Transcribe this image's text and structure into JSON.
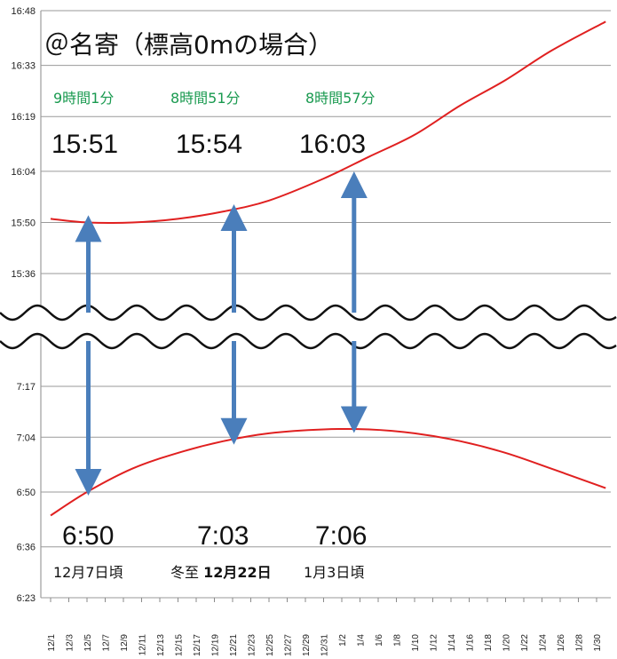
{
  "chart_data": {
    "type": "line",
    "title": "＠名寄（標高0mの場合）",
    "upper_panel": {
      "y_ticks": [
        "15:36",
        "15:50",
        "16:04",
        "16:19",
        "16:33",
        "16:48"
      ],
      "series": [
        {
          "name": "",
          "color": "#e02020",
          "x": [
            "12/1",
            "12/5",
            "12/10",
            "12/15",
            "12/20",
            "12/25",
            "12/31",
            "1/5",
            "1/10",
            "1/15",
            "1/20",
            "1/25",
            "1/31"
          ],
          "y": [
            "15:51",
            "15:50",
            "15:50",
            "15:51",
            "15:53",
            "15:56",
            "16:02",
            "16:08",
            "16:14",
            "16:22",
            "16:29",
            "16:37",
            "16:45"
          ]
        }
      ]
    },
    "lower_panel": {
      "y_ticks": [
        "6:23",
        "6:36",
        "6:50",
        "7:04",
        "7:17"
      ],
      "series": [
        {
          "name": "",
          "color": "#e02020",
          "x": [
            "12/1",
            "12/5",
            "12/10",
            "12/15",
            "12/20",
            "12/25",
            "12/31",
            "1/5",
            "1/10",
            "1/15",
            "1/20",
            "1/25",
            "1/31"
          ],
          "y": [
            "6:44",
            "6:50",
            "6:56",
            "7:00",
            "7:03",
            "7:05",
            "7:06",
            "7:06",
            "7:05",
            "7:03",
            "7:00",
            "6:56",
            "6:51"
          ]
        }
      ]
    },
    "x_ticks": [
      "12/1",
      "12/3",
      "12/5",
      "12/7",
      "12/9",
      "12/11",
      "12/13",
      "12/15",
      "12/17",
      "12/19",
      "12/21",
      "12/23",
      "12/25",
      "12/27",
      "12/29",
      "12/31",
      "1/2",
      "1/4",
      "1/6",
      "1/8",
      "1/10",
      "1/12",
      "1/14",
      "1/16",
      "1/18",
      "1/20",
      "1/22",
      "1/24",
      "1/26",
      "1/28",
      "1/30"
    ],
    "annotations": [
      {
        "date_label": "12月7日頃",
        "date_index": 2,
        "daylength": "9時間1分",
        "sunset": "15:51",
        "sunrise": "6:50",
        "sunset_value": "15:51",
        "sunrise_value": "6:50"
      },
      {
        "date_label_prefix": "冬至 ",
        "date_label": "12月22日",
        "date_index": 10,
        "daylength": "8時間51分",
        "sunset": "15:54",
        "sunrise": "7:03",
        "sunset_value": "15:54",
        "sunrise_value": "7:03"
      },
      {
        "date_label": "1月3日頃",
        "date_index": 16.6,
        "daylength": "8時間57分",
        "sunset": "16:03",
        "sunrise": "7:06",
        "sunset_value": "16:03",
        "sunrise_value": "7:06"
      }
    ],
    "grid": true,
    "colors": {
      "curve": "#e02020",
      "arrow": "#4a7ebb",
      "daylength_text": "#1a9a50",
      "grid": "#9a9a9a"
    }
  }
}
